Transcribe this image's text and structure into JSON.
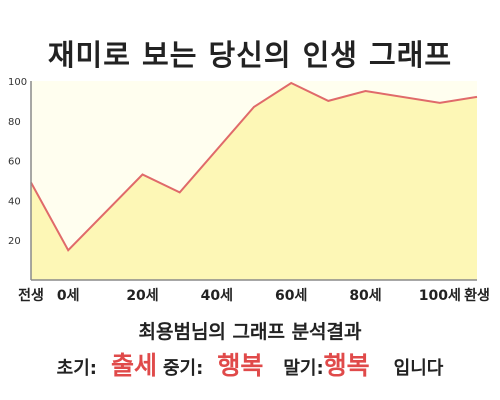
{
  "chart_data": {
    "type": "area",
    "title": "재미로 보는 당신의 인생 그래프",
    "x_labels": [
      "전생",
      "0세",
      "20세",
      "40세",
      "60세",
      "80세",
      "100세",
      "환생"
    ],
    "y_ticks": [
      20,
      40,
      60,
      80,
      100
    ],
    "ylim": [
      0,
      100
    ],
    "series": [
      {
        "points": [
          {
            "x": "전생",
            "y": 49
          },
          {
            "x": "0세",
            "y": 15
          },
          {
            "x": "20세",
            "y": 53
          },
          {
            "x": "30세",
            "y": 44
          },
          {
            "x": "50세",
            "y": 87
          },
          {
            "x": "60세",
            "y": 99
          },
          {
            "x": "70세",
            "y": 90
          },
          {
            "x": "80세",
            "y": 95
          },
          {
            "x": "100세",
            "y": 89
          },
          {
            "x": "환생",
            "y": 92
          }
        ]
      }
    ],
    "grid": false,
    "colors": {
      "line": "#e06a6a",
      "fill": "#fdf7b6",
      "background": "#fffeef",
      "axis": "#8a8a8a"
    }
  },
  "caption": "최용범님의 그래프 분석결과",
  "result": {
    "early_label": "초기:",
    "early_value": "출세",
    "middle_label": "중기:",
    "middle_value": "행복",
    "late_label": "말기:",
    "late_value": "행복",
    "suffix": "입니다"
  }
}
